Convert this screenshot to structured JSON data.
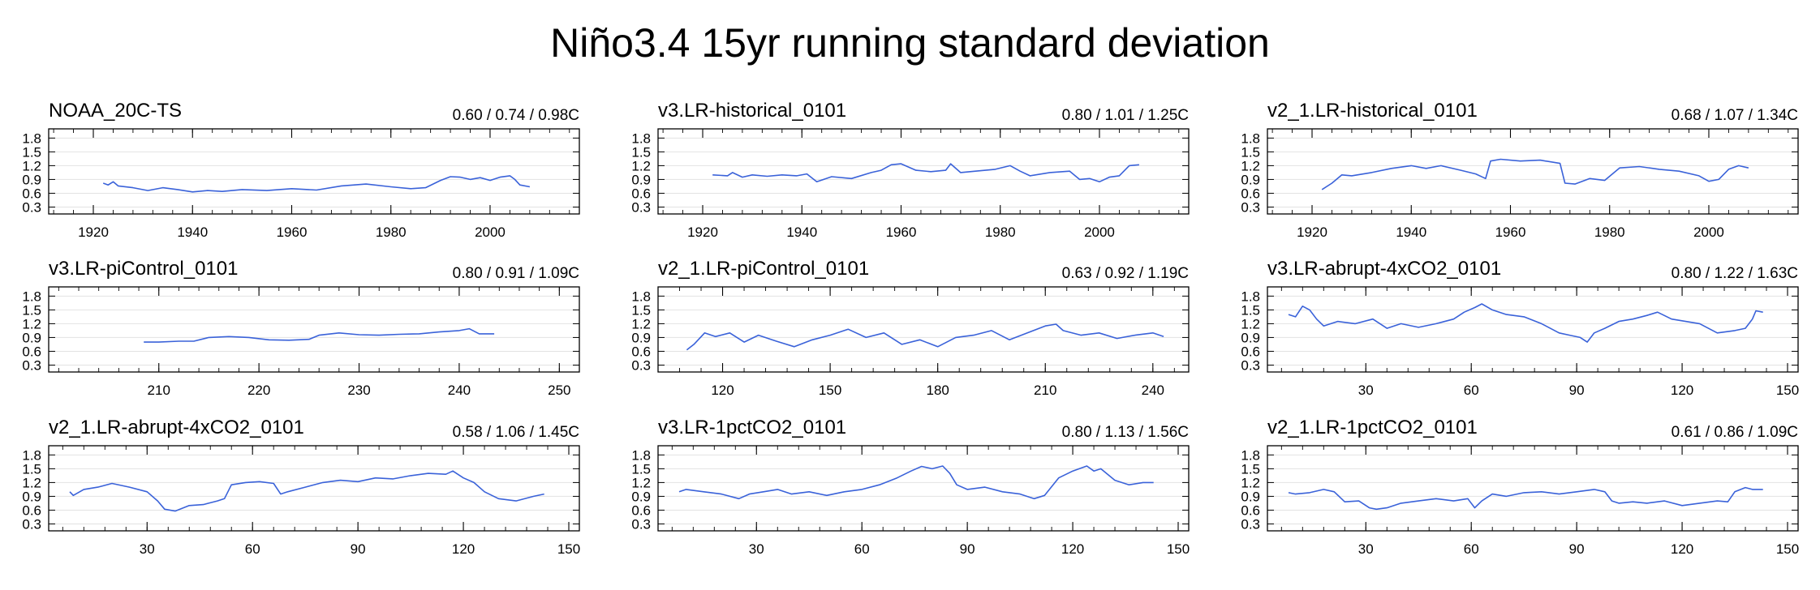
{
  "figure": {
    "title": "Niño3.4 15yr running standard deviation"
  },
  "colors": {
    "series": "#3a62d9",
    "grid": "#e2e2e2",
    "axis": "#000000"
  },
  "chart_data": [
    {
      "type": "line",
      "title": "NOAA_20C-TS",
      "stats": "0.60 / 0.74 / 0.98C",
      "xlabel": "",
      "ylabel": "",
      "xlim": [
        1911,
        2018
      ],
      "ylim": [
        0.15,
        2.0
      ],
      "xticks": [
        1920,
        1940,
        1960,
        1980,
        2000
      ],
      "yticks": [
        0.3,
        0.6,
        0.9,
        1.2,
        1.5,
        1.8
      ],
      "yticklabels": [
        "0.3",
        "0.6",
        "0.9",
        "1.2",
        "1.5",
        "1.8"
      ],
      "series": [
        {
          "name": "NOAA_20C-TS",
          "x": [
            1922,
            1923,
            1924,
            1925,
            1928,
            1931,
            1934,
            1937,
            1940,
            1943,
            1946,
            1950,
            1955,
            1960,
            1965,
            1970,
            1975,
            1980,
            1984,
            1987,
            1990,
            1992,
            1994,
            1996,
            1998,
            2000,
            2002,
            2004,
            2005,
            2006,
            2008
          ],
          "y": [
            0.82,
            0.78,
            0.85,
            0.76,
            0.72,
            0.66,
            0.72,
            0.68,
            0.63,
            0.66,
            0.64,
            0.68,
            0.66,
            0.7,
            0.67,
            0.76,
            0.8,
            0.74,
            0.7,
            0.72,
            0.88,
            0.96,
            0.95,
            0.9,
            0.94,
            0.88,
            0.95,
            0.98,
            0.9,
            0.78,
            0.74
          ]
        }
      ]
    },
    {
      "type": "line",
      "title": "v3.LR-historical_0101",
      "stats": "0.80 / 1.01 / 1.25C",
      "xlabel": "",
      "ylabel": "",
      "xlim": [
        1911,
        2018
      ],
      "ylim": [
        0.15,
        2.0
      ],
      "xticks": [
        1920,
        1940,
        1960,
        1980,
        2000
      ],
      "yticks": [
        0.3,
        0.6,
        0.9,
        1.2,
        1.5,
        1.8
      ],
      "yticklabels": [
        "0.3",
        "0.6",
        "0.9",
        "1.2",
        "1.5",
        "1.8"
      ],
      "series": [
        {
          "name": "v3.LR-historical_0101",
          "x": [
            1922,
            1925,
            1926,
            1928,
            1930,
            1933,
            1936,
            1939,
            1941,
            1943,
            1946,
            1950,
            1954,
            1956,
            1958,
            1960,
            1963,
            1966,
            1969,
            1970,
            1972,
            1975,
            1979,
            1982,
            1984,
            1986,
            1990,
            1994,
            1996,
            1998,
            2000,
            2002,
            2004,
            2006,
            2008
          ],
          "y": [
            1.0,
            0.98,
            1.05,
            0.95,
            1.0,
            0.97,
            1.0,
            0.98,
            1.02,
            0.85,
            0.96,
            0.92,
            1.05,
            1.1,
            1.22,
            1.24,
            1.1,
            1.07,
            1.1,
            1.24,
            1.05,
            1.08,
            1.12,
            1.2,
            1.08,
            0.98,
            1.05,
            1.08,
            0.9,
            0.92,
            0.85,
            0.95,
            0.98,
            1.2,
            1.22
          ]
        }
      ]
    },
    {
      "type": "line",
      "title": "v2_1.LR-historical_0101",
      "stats": "0.68 / 1.07 / 1.34C",
      "xlabel": "",
      "ylabel": "",
      "xlim": [
        1911,
        2018
      ],
      "ylim": [
        0.15,
        2.0
      ],
      "xticks": [
        1920,
        1940,
        1960,
        1980,
        2000
      ],
      "yticks": [
        0.3,
        0.6,
        0.9,
        1.2,
        1.5,
        1.8
      ],
      "yticklabels": [
        "0.3",
        "0.6",
        "0.9",
        "1.2",
        "1.5",
        "1.8"
      ],
      "series": [
        {
          "name": "v2_1.LR-historical_0101",
          "x": [
            1922,
            1924,
            1926,
            1928,
            1932,
            1936,
            1940,
            1943,
            1946,
            1950,
            1953,
            1955,
            1956,
            1958,
            1962,
            1966,
            1970,
            1971,
            1973,
            1976,
            1979,
            1982,
            1986,
            1990,
            1994,
            1998,
            2000,
            2002,
            2004,
            2006,
            2008
          ],
          "y": [
            0.68,
            0.82,
            1.0,
            0.98,
            1.05,
            1.14,
            1.2,
            1.14,
            1.2,
            1.1,
            1.02,
            0.92,
            1.3,
            1.34,
            1.3,
            1.32,
            1.25,
            0.82,
            0.8,
            0.92,
            0.88,
            1.15,
            1.18,
            1.12,
            1.08,
            0.98,
            0.86,
            0.9,
            1.12,
            1.2,
            1.15
          ]
        }
      ]
    },
    {
      "type": "line",
      "title": "v3.LR-piControl_0101",
      "stats": "0.80 / 0.91 / 1.09C",
      "xlabel": "",
      "ylabel": "",
      "xlim": [
        199,
        252
      ],
      "ylim": [
        0.15,
        2.0
      ],
      "xticks": [
        210,
        220,
        230,
        240,
        250
      ],
      "yticks": [
        0.3,
        0.6,
        0.9,
        1.2,
        1.5,
        1.8
      ],
      "yticklabels": [
        "0.3",
        "0.6",
        "0.9",
        "1.2",
        "1.5",
        "1.8"
      ],
      "series": [
        {
          "name": "v3.LR-piControl_0101",
          "x": [
            208.5,
            210,
            212,
            213.5,
            215,
            217,
            219,
            221,
            223,
            225,
            226,
            228,
            230,
            232,
            234,
            236,
            238,
            240,
            241,
            242,
            243.5
          ],
          "y": [
            0.8,
            0.8,
            0.82,
            0.82,
            0.9,
            0.92,
            0.9,
            0.85,
            0.84,
            0.86,
            0.95,
            1.0,
            0.96,
            0.95,
            0.97,
            0.98,
            1.02,
            1.05,
            1.09,
            0.98,
            0.98
          ]
        }
      ]
    },
    {
      "type": "line",
      "title": "v2_1.LR-piControl_0101",
      "stats": "0.63 / 0.92 / 1.19C",
      "xlabel": "",
      "ylabel": "",
      "xlim": [
        102,
        250
      ],
      "ylim": [
        0.15,
        2.0
      ],
      "xticks": [
        120,
        150,
        180,
        210,
        240
      ],
      "yticks": [
        0.3,
        0.6,
        0.9,
        1.2,
        1.5,
        1.8
      ],
      "yticklabels": [
        "0.3",
        "0.6",
        "0.9",
        "1.2",
        "1.5",
        "1.8"
      ],
      "series": [
        {
          "name": "v2_1.LR-piControl_0101",
          "x": [
            110,
            112,
            115,
            118,
            122,
            126,
            130,
            135,
            140,
            145,
            150,
            155,
            160,
            165,
            170,
            175,
            180,
            185,
            190,
            195,
            200,
            205,
            210,
            213,
            215,
            220,
            225,
            230,
            235,
            240,
            243
          ],
          "y": [
            0.63,
            0.75,
            1.0,
            0.92,
            1.0,
            0.8,
            0.95,
            0.82,
            0.7,
            0.85,
            0.95,
            1.08,
            0.9,
            1.0,
            0.75,
            0.85,
            0.7,
            0.9,
            0.95,
            1.05,
            0.85,
            1.0,
            1.15,
            1.19,
            1.05,
            0.95,
            1.0,
            0.88,
            0.95,
            1.0,
            0.92
          ]
        }
      ]
    },
    {
      "type": "line",
      "title": "v3.LR-abrupt-4xCO2_0101",
      "stats": "0.80 / 1.22 / 1.63C",
      "xlabel": "",
      "ylabel": "",
      "xlim": [
        2,
        153
      ],
      "ylim": [
        0.15,
        2.0
      ],
      "xticks": [
        30,
        60,
        90,
        120,
        150
      ],
      "yticks": [
        0.3,
        0.6,
        0.9,
        1.2,
        1.5,
        1.8
      ],
      "yticklabels": [
        "0.3",
        "0.6",
        "0.9",
        "1.2",
        "1.5",
        "1.8"
      ],
      "series": [
        {
          "name": "v3.LR-abrupt-4xCO2_0101",
          "x": [
            8,
            10,
            12,
            14,
            16,
            18,
            22,
            27,
            32,
            36,
            40,
            45,
            50,
            55,
            58,
            61,
            63,
            66,
            70,
            75,
            80,
            85,
            88,
            91,
            93,
            95,
            98,
            102,
            106,
            110,
            113,
            117,
            121,
            125,
            130,
            135,
            138,
            140,
            141,
            143
          ],
          "y": [
            1.4,
            1.35,
            1.58,
            1.5,
            1.3,
            1.15,
            1.25,
            1.2,
            1.3,
            1.1,
            1.2,
            1.12,
            1.2,
            1.3,
            1.45,
            1.55,
            1.63,
            1.5,
            1.4,
            1.35,
            1.2,
            1.0,
            0.95,
            0.9,
            0.8,
            1.0,
            1.1,
            1.25,
            1.3,
            1.38,
            1.45,
            1.3,
            1.25,
            1.2,
            1.0,
            1.05,
            1.1,
            1.3,
            1.48,
            1.45
          ]
        }
      ]
    },
    {
      "type": "line",
      "title": "v2_1.LR-abrupt-4xCO2_0101",
      "stats": "0.58 / 1.06 / 1.45C",
      "xlabel": "",
      "ylabel": "",
      "xlim": [
        2,
        153
      ],
      "ylim": [
        0.15,
        2.0
      ],
      "xticks": [
        30,
        60,
        90,
        120,
        150
      ],
      "yticks": [
        0.3,
        0.6,
        0.9,
        1.2,
        1.5,
        1.8
      ],
      "yticklabels": [
        "0.3",
        "0.6",
        "0.9",
        "1.2",
        "1.5",
        "1.8"
      ],
      "series": [
        {
          "name": "v2_1.LR-abrupt-4xCO2_0101",
          "x": [
            8,
            9,
            12,
            16,
            20,
            25,
            30,
            33,
            35,
            38,
            42,
            46,
            50,
            52,
            54,
            58,
            62,
            66,
            68,
            70,
            75,
            80,
            85,
            90,
            95,
            100,
            105,
            110,
            115,
            117,
            120,
            123,
            126,
            130,
            135,
            140,
            143
          ],
          "y": [
            1.0,
            0.92,
            1.05,
            1.1,
            1.18,
            1.1,
            1.0,
            0.8,
            0.62,
            0.58,
            0.7,
            0.72,
            0.8,
            0.85,
            1.15,
            1.2,
            1.22,
            1.18,
            0.95,
            1.0,
            1.1,
            1.2,
            1.25,
            1.22,
            1.3,
            1.28,
            1.35,
            1.4,
            1.38,
            1.45,
            1.3,
            1.2,
            1.0,
            0.85,
            0.8,
            0.9,
            0.95
          ]
        }
      ]
    },
    {
      "type": "line",
      "title": "v3.LR-1pctCO2_0101",
      "stats": "0.80 / 1.13 / 1.56C",
      "xlabel": "",
      "ylabel": "",
      "xlim": [
        2,
        153
      ],
      "ylim": [
        0.15,
        2.0
      ],
      "xticks": [
        30,
        60,
        90,
        120,
        150
      ],
      "yticks": [
        0.3,
        0.6,
        0.9,
        1.2,
        1.5,
        1.8
      ],
      "yticklabels": [
        "0.3",
        "0.6",
        "0.9",
        "1.2",
        "1.5",
        "1.8"
      ],
      "series": [
        {
          "name": "v3.LR-1pctCO2_0101",
          "x": [
            8,
            10,
            15,
            20,
            25,
            28,
            32,
            36,
            40,
            45,
            50,
            55,
            60,
            65,
            70,
            74,
            77,
            80,
            83,
            85,
            87,
            90,
            95,
            100,
            105,
            109,
            112,
            116,
            120,
            124,
            126,
            128,
            132,
            136,
            140,
            143
          ],
          "y": [
            1.0,
            1.05,
            1.0,
            0.95,
            0.85,
            0.95,
            1.0,
            1.05,
            0.95,
            1.0,
            0.92,
            1.0,
            1.05,
            1.15,
            1.3,
            1.45,
            1.55,
            1.5,
            1.56,
            1.4,
            1.15,
            1.05,
            1.1,
            1.0,
            0.95,
            0.85,
            0.92,
            1.3,
            1.45,
            1.56,
            1.45,
            1.5,
            1.25,
            1.15,
            1.2,
            1.2
          ]
        }
      ]
    },
    {
      "type": "line",
      "title": "v2_1.LR-1pctCO2_0101",
      "stats": "0.61 / 0.86 / 1.09C",
      "xlabel": "",
      "ylabel": "",
      "xlim": [
        2,
        153
      ],
      "ylim": [
        0.15,
        2.0
      ],
      "xticks": [
        30,
        60,
        90,
        120,
        150
      ],
      "yticks": [
        0.3,
        0.6,
        0.9,
        1.2,
        1.5,
        1.8
      ],
      "yticklabels": [
        "0.3",
        "0.6",
        "0.9",
        "1.2",
        "1.5",
        "1.8"
      ],
      "series": [
        {
          "name": "v2_1.LR-1pctCO2_0101",
          "x": [
            8,
            10,
            14,
            18,
            21,
            24,
            28,
            31,
            33,
            36,
            40,
            45,
            50,
            55,
            59,
            61,
            63,
            66,
            70,
            75,
            80,
            85,
            90,
            95,
            98,
            100,
            102,
            106,
            110,
            115,
            120,
            125,
            130,
            133,
            135,
            138,
            140,
            143
          ],
          "y": [
            0.98,
            0.95,
            0.98,
            1.05,
            1.0,
            0.78,
            0.8,
            0.65,
            0.62,
            0.65,
            0.75,
            0.8,
            0.85,
            0.8,
            0.85,
            0.65,
            0.8,
            0.95,
            0.9,
            0.98,
            1.0,
            0.95,
            1.0,
            1.05,
            1.0,
            0.8,
            0.75,
            0.78,
            0.75,
            0.8,
            0.7,
            0.75,
            0.8,
            0.78,
            1.0,
            1.09,
            1.05,
            1.05
          ]
        }
      ]
    }
  ]
}
